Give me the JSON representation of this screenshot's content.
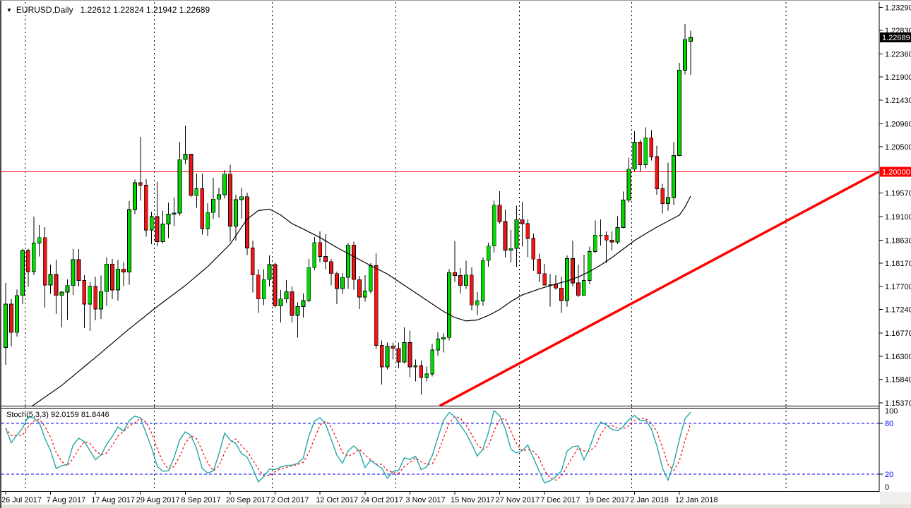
{
  "header": {
    "symbol_period": "EURUSD,Daily",
    "ohlc_text": "1.22612 1.22824 1.21942 1.22689"
  },
  "indicator_label": {
    "name": "Stoch(5,3,3)",
    "k_value": "92.0159",
    "d_value": "81.8446"
  },
  "colors": {
    "background": "#ffffff",
    "bull_body": "#00da00",
    "bear_body": "#f01414",
    "candle_outline": "#000000",
    "wick": "#000000",
    "ma_line": "#000000",
    "trendline": "#ff0000",
    "horizontal_line": "#ff0000",
    "price_box_current_bg": "#000000",
    "price_box_current_text": "#ffffff",
    "price_box_level_bg": "#ff0000",
    "price_box_level_text": "#ffffff",
    "separator": "#000000",
    "stoch_k": "#23a8a8",
    "stoch_d": "#ff0000",
    "stoch_level": "#0000ff",
    "axis_text": "#000000",
    "panel_border": "#000000"
  },
  "chart_data": {
    "type": "candlestick",
    "title": "EURUSD,Daily",
    "symbol": "EURUSD",
    "timeframe": "Daily",
    "legend_position": "top-left",
    "grid": "vertical-month-separators-only",
    "ohlc_display": {
      "open": "1.22612",
      "high": "1.22824",
      "low": "1.21942",
      "close": "1.22689"
    },
    "y_axis": {
      "side": "right",
      "tick_labels": [
        "1.23290",
        "1.22830",
        "1.22360",
        "1.21900",
        "1.21430",
        "1.20960",
        "1.20500",
        "1.19570",
        "1.19100",
        "1.18630",
        "1.18170",
        "1.17700",
        "1.17240",
        "1.16770",
        "1.16300",
        "1.15840",
        "1.15370"
      ],
      "range": [
        1.15314,
        1.23395
      ],
      "current_price": 1.22689,
      "current_price_label": "1.22689",
      "horizontal_line_price": 1.2,
      "horizontal_line_label": "1.20000"
    },
    "x_axis": {
      "labels": [
        {
          "i": 0,
          "t": "26 Jul 2017"
        },
        {
          "i": 8,
          "t": "7 Aug 2017"
        },
        {
          "i": 16,
          "t": "17 Aug 2017"
        },
        {
          "i": 24,
          "t": "29 Aug 2017"
        },
        {
          "i": 32,
          "t": "8 Sep 2017"
        },
        {
          "i": 40,
          "t": "20 Sep 2017"
        },
        {
          "i": 48,
          "t": "2 Oct 2017"
        },
        {
          "i": 56,
          "t": "12 Oct 2017"
        },
        {
          "i": 64,
          "t": "24 Oct 2017"
        },
        {
          "i": 72,
          "t": "3 Nov 2017"
        },
        {
          "i": 80,
          "t": "15 Nov 2017"
        },
        {
          "i": 88,
          "t": "27 Nov 2017"
        },
        {
          "i": 96,
          "t": "7 Dec 2017"
        },
        {
          "i": 104,
          "t": "19 Dec 2017"
        },
        {
          "i": 112,
          "t": "2 Jan 2018"
        },
        {
          "i": 120,
          "t": "12 Jan 2018"
        }
      ]
    },
    "month_separators_i": [
      3.5,
      26.5,
      47.5,
      69.5,
      91.5,
      111.5,
      139
    ],
    "candles": [
      [
        1.1648,
        1.1777,
        1.1613,
        1.1735
      ],
      [
        1.1735,
        1.1745,
        1.165,
        1.1678
      ],
      [
        1.1678,
        1.1764,
        1.167,
        1.1752
      ],
      [
        1.1752,
        1.1846,
        1.1735,
        1.1842
      ],
      [
        1.1842,
        1.1846,
        1.177,
        1.18
      ],
      [
        1.18,
        1.191,
        1.1793,
        1.1857
      ],
      [
        1.1857,
        1.1893,
        1.183,
        1.1868
      ],
      [
        1.1868,
        1.1889,
        1.1728,
        1.1773
      ],
      [
        1.1773,
        1.1814,
        1.1755,
        1.1794
      ],
      [
        1.1794,
        1.1824,
        1.1715,
        1.1752
      ],
      [
        1.1752,
        1.1761,
        1.1688,
        1.1759
      ],
      [
        1.1759,
        1.1784,
        1.1703,
        1.1772
      ],
      [
        1.1772,
        1.1846,
        1.1753,
        1.1824
      ],
      [
        1.1824,
        1.1845,
        1.177,
        1.1782
      ],
      [
        1.1782,
        1.1793,
        1.1687,
        1.1735
      ],
      [
        1.1735,
        1.1779,
        1.1681,
        1.177
      ],
      [
        1.177,
        1.179,
        1.1702,
        1.1725
      ],
      [
        1.1725,
        1.1792,
        1.1705,
        1.176
      ],
      [
        1.176,
        1.1829,
        1.1731,
        1.1815
      ],
      [
        1.1815,
        1.1825,
        1.1745,
        1.1763
      ],
      [
        1.1763,
        1.1823,
        1.1742,
        1.1805
      ],
      [
        1.1805,
        1.1819,
        1.1771,
        1.1799
      ],
      [
        1.1799,
        1.1941,
        1.1774,
        1.1924
      ],
      [
        1.1924,
        1.1984,
        1.1915,
        1.1978
      ],
      [
        1.1978,
        1.207,
        1.1942,
        1.1973
      ],
      [
        1.1973,
        1.1985,
        1.187,
        1.1883
      ],
      [
        1.1883,
        1.192,
        1.1855,
        1.191
      ],
      [
        1.191,
        1.198,
        1.1851,
        1.186
      ],
      [
        1.186,
        1.1922,
        1.1856,
        1.1895
      ],
      [
        1.1895,
        1.1938,
        1.1867,
        1.1915
      ],
      [
        1.1915,
        1.1948,
        1.1891,
        1.1917
      ],
      [
        1.1917,
        1.206,
        1.1912,
        1.2024
      ],
      [
        1.2024,
        1.2092,
        1.2015,
        1.2035
      ],
      [
        1.2035,
        1.2036,
        1.1949,
        1.1952
      ],
      [
        1.1952,
        1.1996,
        1.1928,
        1.1966
      ],
      [
        1.1966,
        1.1996,
        1.1874,
        1.1886
      ],
      [
        1.1886,
        1.1937,
        1.1871,
        1.1918
      ],
      [
        1.1918,
        1.1988,
        1.1905,
        1.1945
      ],
      [
        1.1945,
        1.1968,
        1.1908,
        1.1954
      ],
      [
        1.1954,
        1.2003,
        1.1946,
        1.1995
      ],
      [
        1.1995,
        1.2014,
        1.186,
        1.1891
      ],
      [
        1.1891,
        1.1954,
        1.1862,
        1.1944
      ],
      [
        1.1944,
        1.1968,
        1.1906,
        1.195
      ],
      [
        1.195,
        1.1958,
        1.1833,
        1.1847
      ],
      [
        1.1847,
        1.1862,
        1.1758,
        1.1793
      ],
      [
        1.1793,
        1.1805,
        1.1717,
        1.1745
      ],
      [
        1.1745,
        1.1805,
        1.1733,
        1.1784
      ],
      [
        1.1784,
        1.1832,
        1.177,
        1.1814
      ],
      [
        1.1814,
        1.1818,
        1.1727,
        1.1731
      ],
      [
        1.1731,
        1.1763,
        1.1698,
        1.1745
      ],
      [
        1.1745,
        1.1783,
        1.1737,
        1.176
      ],
      [
        1.176,
        1.177,
        1.1698,
        1.1712
      ],
      [
        1.1712,
        1.1738,
        1.1668,
        1.173
      ],
      [
        1.173,
        1.1756,
        1.1708,
        1.1742
      ],
      [
        1.1742,
        1.1825,
        1.1738,
        1.1808
      ],
      [
        1.1808,
        1.1869,
        1.1803,
        1.1858
      ],
      [
        1.1858,
        1.188,
        1.1818,
        1.183
      ],
      [
        1.183,
        1.1875,
        1.1805,
        1.182
      ],
      [
        1.182,
        1.1825,
        1.1772,
        1.1796
      ],
      [
        1.1796,
        1.18,
        1.1735,
        1.1766
      ],
      [
        1.1766,
        1.1797,
        1.1755,
        1.1788
      ],
      [
        1.1788,
        1.1858,
        1.1765,
        1.1853
      ],
      [
        1.1853,
        1.186,
        1.1764,
        1.1784
      ],
      [
        1.1784,
        1.1791,
        1.1725,
        1.1749
      ],
      [
        1.1749,
        1.1793,
        1.174,
        1.1761
      ],
      [
        1.1761,
        1.1817,
        1.1756,
        1.1812
      ],
      [
        1.1812,
        1.1837,
        1.1645,
        1.1652
      ],
      [
        1.1652,
        1.1662,
        1.1574,
        1.1609
      ],
      [
        1.1609,
        1.1658,
        1.1604,
        1.165
      ],
      [
        1.165,
        1.1658,
        1.1624,
        1.1646
      ],
      [
        1.1646,
        1.1658,
        1.1606,
        1.1619
      ],
      [
        1.1619,
        1.1688,
        1.1616,
        1.1658
      ],
      [
        1.1658,
        1.1682,
        1.1588,
        1.1609
      ],
      [
        1.1609,
        1.1624,
        1.158,
        1.1611
      ],
      [
        1.1611,
        1.1622,
        1.1553,
        1.1588
      ],
      [
        1.1588,
        1.161,
        1.158,
        1.1595
      ],
      [
        1.1595,
        1.1655,
        1.159,
        1.1643
      ],
      [
        1.1643,
        1.1678,
        1.1632,
        1.1665
      ],
      [
        1.1665,
        1.1676,
        1.1638,
        1.1668
      ],
      [
        1.1668,
        1.1805,
        1.1662,
        1.1798
      ],
      [
        1.1798,
        1.1861,
        1.1779,
        1.1792
      ],
      [
        1.1792,
        1.1807,
        1.1756,
        1.1772
      ],
      [
        1.1772,
        1.1822,
        1.1765,
        1.1793
      ],
      [
        1.1793,
        1.1808,
        1.1722,
        1.1733
      ],
      [
        1.1733,
        1.1759,
        1.1713,
        1.1741
      ],
      [
        1.1741,
        1.1829,
        1.1731,
        1.1822
      ],
      [
        1.1822,
        1.1858,
        1.181,
        1.1851
      ],
      [
        1.1851,
        1.1942,
        1.1838,
        1.1933
      ],
      [
        1.1933,
        1.1961,
        1.1896,
        1.19
      ],
      [
        1.19,
        1.1924,
        1.1828,
        1.1843
      ],
      [
        1.1843,
        1.1883,
        1.1818,
        1.1846
      ],
      [
        1.1846,
        1.1932,
        1.1809,
        1.1904
      ],
      [
        1.1904,
        1.194,
        1.185,
        1.1896
      ],
      [
        1.1896,
        1.1904,
        1.1829,
        1.1866
      ],
      [
        1.1866,
        1.1876,
        1.1801,
        1.1825
      ],
      [
        1.1825,
        1.1836,
        1.1779,
        1.1796
      ],
      [
        1.1796,
        1.1815,
        1.1772,
        1.1773
      ],
      [
        1.1773,
        1.1795,
        1.173,
        1.1774
      ],
      [
        1.1774,
        1.1793,
        1.1764,
        1.1767
      ],
      [
        1.1767,
        1.1789,
        1.1717,
        1.1742
      ],
      [
        1.1742,
        1.1832,
        1.173,
        1.1826
      ],
      [
        1.1826,
        1.1862,
        1.177,
        1.1777
      ],
      [
        1.1777,
        1.1814,
        1.1749,
        1.1752
      ],
      [
        1.1752,
        1.1834,
        1.1751,
        1.1782
      ],
      [
        1.1782,
        1.185,
        1.1775,
        1.184
      ],
      [
        1.184,
        1.1902,
        1.1837,
        1.1873
      ],
      [
        1.1873,
        1.1904,
        1.1852,
        1.1873
      ],
      [
        1.1873,
        1.188,
        1.1817,
        1.1863
      ],
      [
        1.1863,
        1.188,
        1.1842,
        1.1859
      ],
      [
        1.1859,
        1.1911,
        1.1855,
        1.1888
      ],
      [
        1.1888,
        1.196,
        1.1887,
        1.1943
      ],
      [
        1.1943,
        1.2028,
        1.1938,
        1.2005
      ],
      [
        1.2005,
        1.2081,
        1.2001,
        1.2059
      ],
      [
        1.2059,
        1.2064,
        1.2001,
        1.2014
      ],
      [
        1.2014,
        1.2089,
        1.2007,
        1.2068
      ],
      [
        1.2068,
        1.2083,
        1.2022,
        1.203
      ],
      [
        1.203,
        1.2052,
        1.1954,
        1.1966
      ],
      [
        1.1966,
        1.1976,
        1.1916,
        1.1936
      ],
      [
        1.1936,
        1.2018,
        1.1922,
        1.1948
      ],
      [
        1.1948,
        1.2059,
        1.1933,
        1.2032
      ],
      [
        1.2032,
        1.2218,
        1.2031,
        1.2203
      ],
      [
        1.2203,
        1.2296,
        1.2195,
        1.2265
      ],
      [
        1.22612,
        1.22824,
        1.21942,
        1.22689
      ]
    ],
    "ma_points": [
      [
        4,
        1.1525
      ],
      [
        10,
        1.1572
      ],
      [
        16,
        1.1628
      ],
      [
        22,
        1.1685
      ],
      [
        27,
        1.173
      ],
      [
        32,
        1.1772
      ],
      [
        36,
        1.181
      ],
      [
        40,
        1.1855
      ],
      [
        43,
        1.1905
      ],
      [
        45,
        1.1922
      ],
      [
        47,
        1.1925
      ],
      [
        49,
        1.1913
      ],
      [
        51,
        1.1896
      ],
      [
        53,
        1.1885
      ],
      [
        56,
        1.1868
      ],
      [
        59,
        1.1848
      ],
      [
        62,
        1.183
      ],
      [
        65,
        1.1812
      ],
      [
        68,
        1.1795
      ],
      [
        70,
        1.178
      ],
      [
        72,
        1.1765
      ],
      [
        74,
        1.175
      ],
      [
        76,
        1.1735
      ],
      [
        78,
        1.172
      ],
      [
        80,
        1.1708
      ],
      [
        82,
        1.1701
      ],
      [
        84,
        1.1703
      ],
      [
        86,
        1.1712
      ],
      [
        88,
        1.1724
      ],
      [
        90,
        1.174
      ],
      [
        92,
        1.1753
      ],
      [
        95,
        1.1765
      ],
      [
        98,
        1.1775
      ],
      [
        100,
        1.1781
      ],
      [
        102,
        1.1789
      ],
      [
        104,
        1.18
      ],
      [
        106,
        1.1813
      ],
      [
        108,
        1.1828
      ],
      [
        110,
        1.1845
      ],
      [
        112,
        1.1862
      ],
      [
        114,
        1.1876
      ],
      [
        116,
        1.1889
      ],
      [
        118,
        1.1901
      ],
      [
        120,
        1.1913
      ],
      [
        121,
        1.1929
      ],
      [
        122,
        1.1951
      ]
    ],
    "trendline": {
      "x1_frac": 0.4995,
      "price1": 1.1531,
      "x2_frac": 1.0,
      "price2": 1.2
    },
    "stochastic": {
      "label": "Stoch(5,3,3)",
      "k_display": "92.0159",
      "d_display": "81.8446",
      "k_period": 5,
      "d_period": 3,
      "slowing": 3,
      "levels": [
        80,
        20
      ],
      "axis_labels": [
        100,
        80,
        20,
        0
      ],
      "range": [
        0,
        100
      ]
    }
  }
}
